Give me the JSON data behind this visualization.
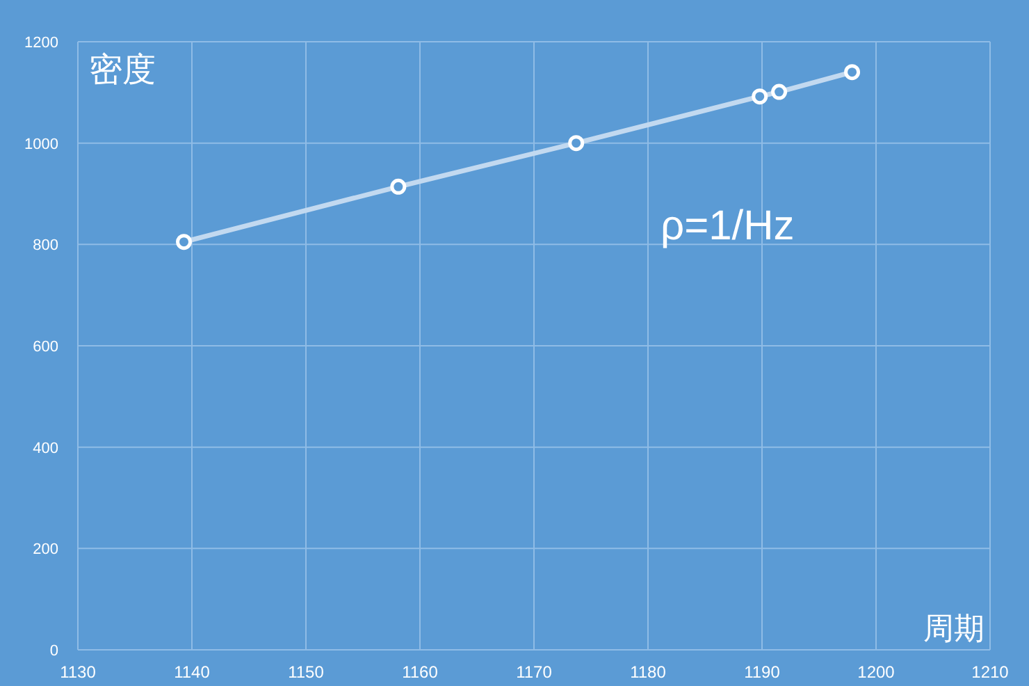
{
  "chart_data": {
    "type": "line",
    "ylabel": "密度",
    "xlabel": "周期",
    "annotations": [
      "ρ=1/Hz"
    ],
    "x": [
      1139.3,
      1158.1,
      1173.7,
      1189.8,
      1191.5,
      1197.9
    ],
    "series": [
      {
        "color": "#c2d9f0",
        "values": [
          805,
          914,
          1000,
          1092,
          1101,
          1140
        ]
      }
    ],
    "xlim": [
      1130,
      1210
    ],
    "xticks": [
      1130,
      1140,
      1150,
      1160,
      1170,
      1180,
      1190,
      1200,
      1210
    ],
    "ylim": [
      0,
      1200
    ],
    "yticks": [
      0,
      200,
      400,
      600,
      800,
      1000,
      1200
    ],
    "grid": true,
    "marker": "circle",
    "line_style": "solid"
  }
}
